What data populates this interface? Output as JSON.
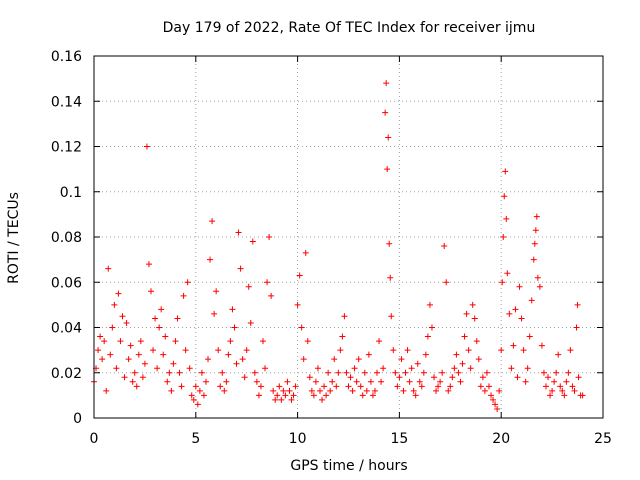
{
  "chart_data": {
    "type": "scatter",
    "title": "Day 179 of 2022, Rate Of TEC Index for receiver ijmu",
    "xlabel": "GPS time / hours",
    "ylabel": "ROTI / TECUs",
    "xlim": [
      0,
      25
    ],
    "ylim": [
      0,
      0.16
    ],
    "xticks": [
      0,
      5,
      10,
      15,
      20,
      25
    ],
    "xtick_labels": [
      "0",
      "5",
      "10",
      "15",
      "20",
      "25"
    ],
    "yticks": [
      0,
      0.02,
      0.04,
      0.06,
      0.08,
      0.1,
      0.12,
      0.14,
      0.16
    ],
    "ytick_labels": [
      "0",
      "0.02",
      "0.04",
      "0.06",
      "0.08",
      "0.1",
      "0.12",
      "0.14",
      "0.16"
    ],
    "grid": true,
    "marker": "plus",
    "series": [
      {
        "name": "ROTI",
        "color": "#ff0000",
        "points": [
          [
            0.0,
            0.016
          ],
          [
            0.1,
            0.022
          ],
          [
            0.2,
            0.03
          ],
          [
            0.3,
            0.036
          ],
          [
            0.4,
            0.026
          ],
          [
            0.5,
            0.034
          ],
          [
            0.6,
            0.012
          ],
          [
            0.7,
            0.066
          ],
          [
            0.8,
            0.028
          ],
          [
            0.9,
            0.04
          ],
          [
            1.0,
            0.05
          ],
          [
            1.1,
            0.022
          ],
          [
            1.2,
            0.055
          ],
          [
            1.3,
            0.034
          ],
          [
            1.4,
            0.045
          ],
          [
            1.5,
            0.018
          ],
          [
            1.6,
            0.042
          ],
          [
            1.7,
            0.026
          ],
          [
            1.8,
            0.032
          ],
          [
            1.9,
            0.016
          ],
          [
            2.0,
            0.02
          ],
          [
            2.1,
            0.014
          ],
          [
            2.2,
            0.028
          ],
          [
            2.3,
            0.034
          ],
          [
            2.4,
            0.018
          ],
          [
            2.5,
            0.024
          ],
          [
            2.6,
            0.12
          ],
          [
            2.7,
            0.068
          ],
          [
            2.8,
            0.056
          ],
          [
            2.9,
            0.03
          ],
          [
            3.0,
            0.044
          ],
          [
            3.1,
            0.022
          ],
          [
            3.2,
            0.04
          ],
          [
            3.3,
            0.048
          ],
          [
            3.4,
            0.028
          ],
          [
            3.5,
            0.036
          ],
          [
            3.6,
            0.016
          ],
          [
            3.7,
            0.02
          ],
          [
            3.8,
            0.012
          ],
          [
            3.9,
            0.024
          ],
          [
            4.0,
            0.034
          ],
          [
            4.1,
            0.044
          ],
          [
            4.2,
            0.02
          ],
          [
            4.3,
            0.014
          ],
          [
            4.4,
            0.054
          ],
          [
            4.5,
            0.03
          ],
          [
            4.6,
            0.06
          ],
          [
            4.7,
            0.022
          ],
          [
            4.8,
            0.01
          ],
          [
            4.9,
            0.008
          ],
          [
            5.0,
            0.014
          ],
          [
            5.1,
            0.006
          ],
          [
            5.2,
            0.012
          ],
          [
            5.3,
            0.02
          ],
          [
            5.4,
            0.01
          ],
          [
            5.5,
            0.016
          ],
          [
            5.6,
            0.026
          ],
          [
            5.7,
            0.07
          ],
          [
            5.8,
            0.087
          ],
          [
            5.9,
            0.046
          ],
          [
            6.0,
            0.056
          ],
          [
            6.1,
            0.03
          ],
          [
            6.2,
            0.014
          ],
          [
            6.3,
            0.02
          ],
          [
            6.4,
            0.012
          ],
          [
            6.5,
            0.016
          ],
          [
            6.6,
            0.028
          ],
          [
            6.7,
            0.034
          ],
          [
            6.8,
            0.048
          ],
          [
            6.9,
            0.04
          ],
          [
            7.0,
            0.024
          ],
          [
            7.1,
            0.082
          ],
          [
            7.2,
            0.066
          ],
          [
            7.3,
            0.026
          ],
          [
            7.4,
            0.018
          ],
          [
            7.5,
            0.03
          ],
          [
            7.6,
            0.058
          ],
          [
            7.7,
            0.042
          ],
          [
            7.8,
            0.078
          ],
          [
            7.9,
            0.02
          ],
          [
            8.0,
            0.016
          ],
          [
            8.1,
            0.01
          ],
          [
            8.2,
            0.014
          ],
          [
            8.3,
            0.034
          ],
          [
            8.4,
            0.022
          ],
          [
            8.5,
            0.06
          ],
          [
            8.6,
            0.08
          ],
          [
            8.7,
            0.054
          ],
          [
            8.8,
            0.012
          ],
          [
            8.9,
            0.008
          ],
          [
            9.0,
            0.01
          ],
          [
            9.1,
            0.014
          ],
          [
            9.2,
            0.008
          ],
          [
            9.3,
            0.012
          ],
          [
            9.4,
            0.01
          ],
          [
            9.5,
            0.016
          ],
          [
            9.6,
            0.012
          ],
          [
            9.7,
            0.008
          ],
          [
            9.8,
            0.01
          ],
          [
            9.9,
            0.014
          ],
          [
            10.0,
            0.05
          ],
          [
            10.1,
            0.063
          ],
          [
            10.2,
            0.04
          ],
          [
            10.3,
            0.026
          ],
          [
            10.4,
            0.073
          ],
          [
            10.5,
            0.034
          ],
          [
            10.6,
            0.018
          ],
          [
            10.7,
            0.012
          ],
          [
            10.8,
            0.01
          ],
          [
            10.9,
            0.016
          ],
          [
            11.0,
            0.022
          ],
          [
            11.1,
            0.012
          ],
          [
            11.2,
            0.008
          ],
          [
            11.3,
            0.014
          ],
          [
            11.4,
            0.01
          ],
          [
            11.5,
            0.02
          ],
          [
            11.6,
            0.012
          ],
          [
            11.7,
            0.016
          ],
          [
            11.8,
            0.026
          ],
          [
            11.9,
            0.014
          ],
          [
            12.0,
            0.02
          ],
          [
            12.1,
            0.03
          ],
          [
            12.2,
            0.036
          ],
          [
            12.3,
            0.045
          ],
          [
            12.4,
            0.02
          ],
          [
            12.5,
            0.014
          ],
          [
            12.6,
            0.018
          ],
          [
            12.7,
            0.012
          ],
          [
            12.8,
            0.022
          ],
          [
            12.9,
            0.016
          ],
          [
            13.0,
            0.026
          ],
          [
            13.1,
            0.014
          ],
          [
            13.2,
            0.01
          ],
          [
            13.3,
            0.02
          ],
          [
            13.4,
            0.012
          ],
          [
            13.5,
            0.028
          ],
          [
            13.6,
            0.016
          ],
          [
            13.7,
            0.01
          ],
          [
            13.8,
            0.012
          ],
          [
            13.9,
            0.02
          ],
          [
            14.0,
            0.034
          ],
          [
            14.1,
            0.016
          ],
          [
            14.2,
            0.022
          ],
          [
            14.3,
            0.135
          ],
          [
            14.35,
            0.148
          ],
          [
            14.4,
            0.11
          ],
          [
            14.45,
            0.124
          ],
          [
            14.5,
            0.077
          ],
          [
            14.55,
            0.062
          ],
          [
            14.6,
            0.045
          ],
          [
            14.7,
            0.03
          ],
          [
            14.8,
            0.02
          ],
          [
            14.9,
            0.014
          ],
          [
            15.0,
            0.018
          ],
          [
            15.1,
            0.026
          ],
          [
            15.2,
            0.012
          ],
          [
            15.3,
            0.02
          ],
          [
            15.4,
            0.03
          ],
          [
            15.5,
            0.016
          ],
          [
            15.6,
            0.022
          ],
          [
            15.7,
            0.012
          ],
          [
            15.8,
            0.01
          ],
          [
            15.9,
            0.024
          ],
          [
            16.0,
            0.016
          ],
          [
            16.1,
            0.014
          ],
          [
            16.2,
            0.02
          ],
          [
            16.3,
            0.028
          ],
          [
            16.4,
            0.036
          ],
          [
            16.5,
            0.05
          ],
          [
            16.6,
            0.04
          ],
          [
            16.7,
            0.018
          ],
          [
            16.8,
            0.012
          ],
          [
            16.9,
            0.014
          ],
          [
            17.0,
            0.016
          ],
          [
            17.1,
            0.02
          ],
          [
            17.2,
            0.076
          ],
          [
            17.3,
            0.06
          ],
          [
            17.4,
            0.012
          ],
          [
            17.5,
            0.014
          ],
          [
            17.6,
            0.018
          ],
          [
            17.7,
            0.022
          ],
          [
            17.8,
            0.028
          ],
          [
            17.9,
            0.02
          ],
          [
            18.0,
            0.016
          ],
          [
            18.1,
            0.024
          ],
          [
            18.2,
            0.036
          ],
          [
            18.3,
            0.046
          ],
          [
            18.4,
            0.03
          ],
          [
            18.5,
            0.022
          ],
          [
            18.6,
            0.05
          ],
          [
            18.7,
            0.044
          ],
          [
            18.8,
            0.034
          ],
          [
            18.9,
            0.026
          ],
          [
            19.0,
            0.014
          ],
          [
            19.1,
            0.018
          ],
          [
            19.2,
            0.012
          ],
          [
            19.3,
            0.02
          ],
          [
            19.4,
            0.014
          ],
          [
            19.5,
            0.01
          ],
          [
            19.6,
            0.008
          ],
          [
            19.7,
            0.006
          ],
          [
            19.8,
            0.004
          ],
          [
            19.9,
            0.012
          ],
          [
            20.0,
            0.03
          ],
          [
            20.05,
            0.06
          ],
          [
            20.1,
            0.08
          ],
          [
            20.15,
            0.098
          ],
          [
            20.2,
            0.109
          ],
          [
            20.25,
            0.088
          ],
          [
            20.3,
            0.064
          ],
          [
            20.4,
            0.046
          ],
          [
            20.5,
            0.022
          ],
          [
            20.6,
            0.032
          ],
          [
            20.7,
            0.048
          ],
          [
            20.8,
            0.018
          ],
          [
            20.9,
            0.058
          ],
          [
            21.0,
            0.044
          ],
          [
            21.1,
            0.03
          ],
          [
            21.2,
            0.016
          ],
          [
            21.3,
            0.022
          ],
          [
            21.4,
            0.036
          ],
          [
            21.5,
            0.052
          ],
          [
            21.6,
            0.07
          ],
          [
            21.65,
            0.077
          ],
          [
            21.7,
            0.083
          ],
          [
            21.75,
            0.089
          ],
          [
            21.8,
            0.062
          ],
          [
            21.9,
            0.058
          ],
          [
            22.0,
            0.032
          ],
          [
            22.1,
            0.02
          ],
          [
            22.2,
            0.014
          ],
          [
            22.3,
            0.018
          ],
          [
            22.4,
            0.01
          ],
          [
            22.5,
            0.012
          ],
          [
            22.6,
            0.016
          ],
          [
            22.7,
            0.02
          ],
          [
            22.8,
            0.028
          ],
          [
            22.9,
            0.014
          ],
          [
            23.0,
            0.012
          ],
          [
            23.1,
            0.01
          ],
          [
            23.2,
            0.016
          ],
          [
            23.3,
            0.02
          ],
          [
            23.4,
            0.03
          ],
          [
            23.5,
            0.014
          ],
          [
            23.6,
            0.012
          ],
          [
            23.7,
            0.04
          ],
          [
            23.75,
            0.05
          ],
          [
            23.8,
            0.018
          ],
          [
            23.9,
            0.01
          ],
          [
            24.0,
            0.01
          ]
        ]
      }
    ]
  }
}
